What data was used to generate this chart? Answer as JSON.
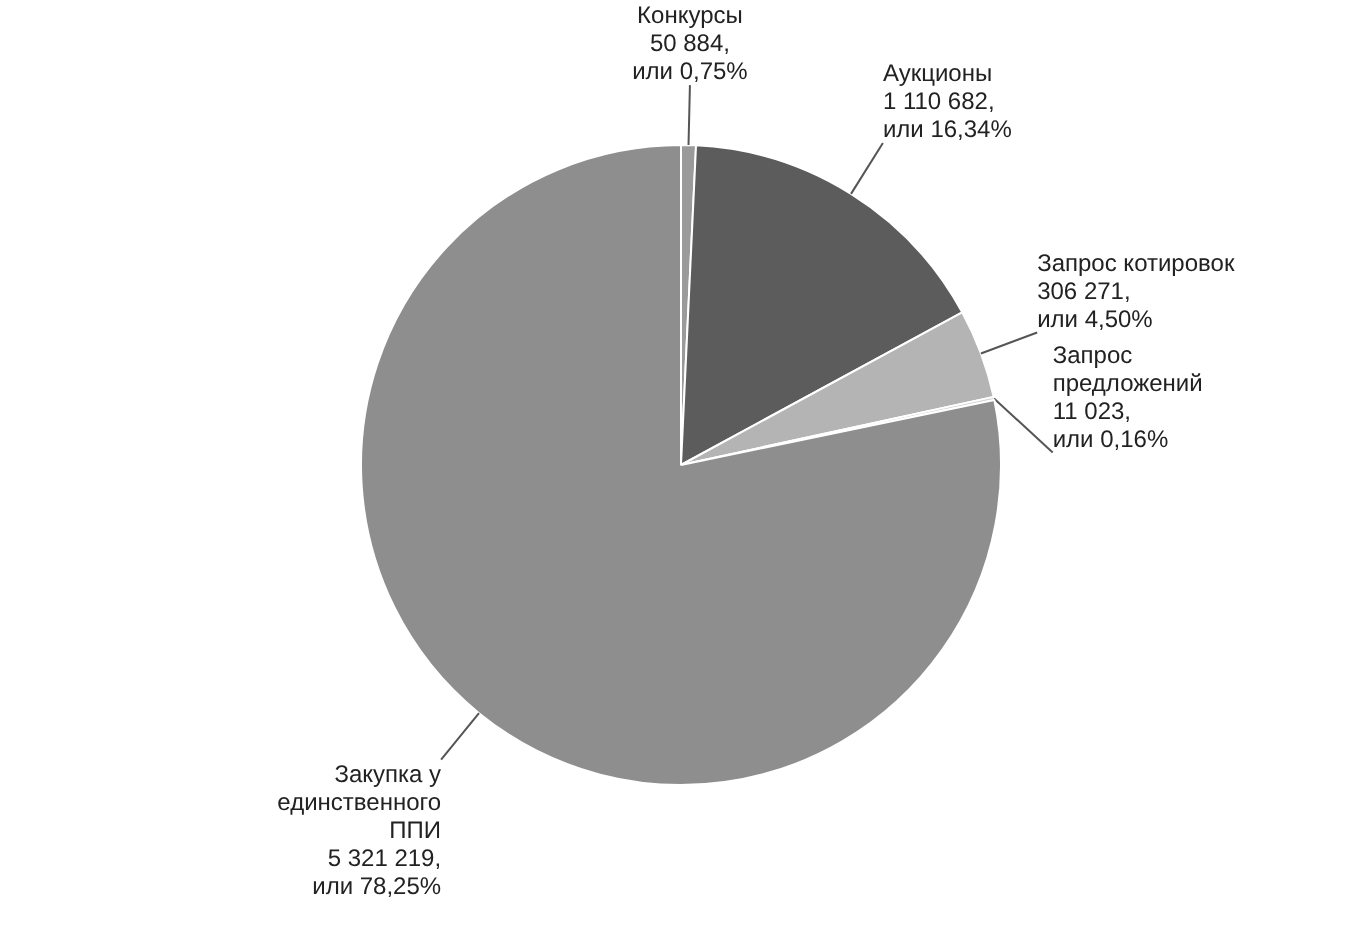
{
  "chart_data": {
    "type": "pie",
    "categories": [
      "Конкурсы",
      "Аукционы",
      "Запрос котировок",
      "Запрос\nпредложений",
      "Закупка у\nединственного\nППИ"
    ],
    "values": [
      50884,
      1110682,
      306271,
      11023,
      5321219
    ],
    "colors": [
      "#9a9a9a",
      "#5c5c5c",
      "#b4b4b4",
      "#d2d2d2",
      "#8e8e8e"
    ],
    "value_labels": [
      "50 884,\nили 0,75%",
      "1 110 682,\nили 16,34%",
      "306 271,\nили 4,50%",
      "11 023,\nили 0,16%",
      "5 321 219,\nили 78,25%"
    ]
  }
}
